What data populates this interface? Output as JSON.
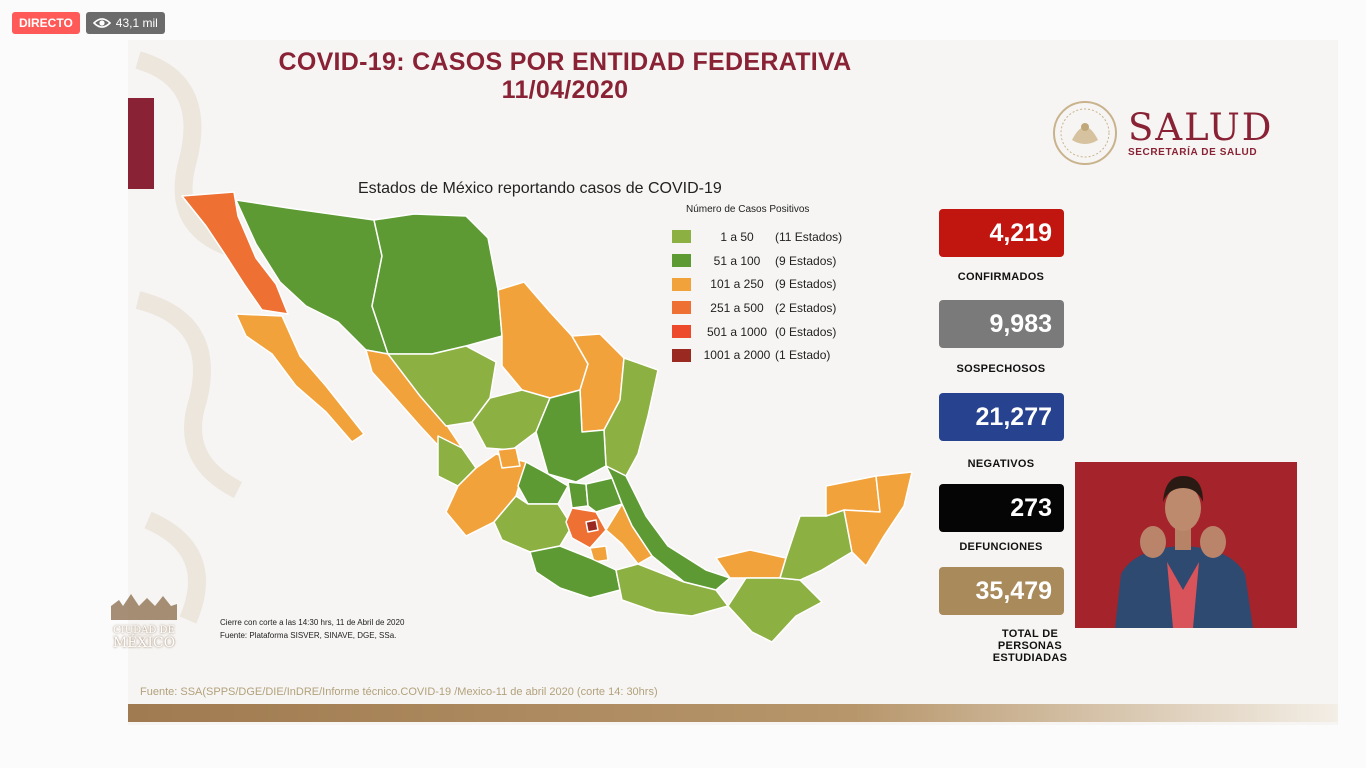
{
  "badges": {
    "live": "DIRECTO",
    "views": "43,1 mil",
    "views_icon": "eye-icon"
  },
  "slide": {
    "title_line1": "COVID-19: CASOS POR ENTIDAD FEDERATIVA",
    "title_line2": "11/04/2020",
    "brand_color": "#8a2235"
  },
  "logo": {
    "word": "SALUD",
    "sub": "SECRETARÍA DE SALUD",
    "seal_text": "ESTADOS UNIDOS MEXICANOS"
  },
  "map": {
    "title": "Estados de México reportando casos de COVID-19",
    "legend_title": "Número de Casos Positivos",
    "legend": [
      {
        "range": "1 a 50",
        "count": "(11 Estados)",
        "color": "#8db043"
      },
      {
        "range": "51 a 100",
        "count": "(9 Estados)",
        "color": "#5e9a33"
      },
      {
        "range": "101 a 250",
        "count": "(9 Estados)",
        "color": "#f2a23a"
      },
      {
        "range": "251 a 500",
        "count": "(2 Estados)",
        "color": "#ee7033"
      },
      {
        "range": "501 a 1000",
        "count": "(0 Estados)",
        "color": "#ec4a2a"
      },
      {
        "range": "1001 a 2000",
        "count": "(1 Estado)",
        "color": "#9a2a21"
      }
    ],
    "note1": "Cierre con corte a las 14:30 hrs, 11 de Abril de 2020",
    "note2": "Fuente: Plataforma SISVER, SINAVE, DGE, SSa."
  },
  "ciudad": {
    "line1": "CIUDAD DE",
    "line2": "MÉXICO"
  },
  "source": "Fuente: SSA(SPPS/DGE/DIE/InDRE/Informe técnico.COVID-19 /Mexico-11 de abril 2020 (corte 14: 30hrs)",
  "stats": [
    {
      "value": "4,219",
      "label": "CONFIRMADOS",
      "color": "#c0160f"
    },
    {
      "value": "9,983",
      "label": "SOSPECHOSOS",
      "color": "#7a7a7a"
    },
    {
      "value": "21,277",
      "label": "NEGATIVOS",
      "color": "#27428f"
    },
    {
      "value": "273",
      "label": "DEFUNCIONES",
      "color": "#050505"
    },
    {
      "value": "35,479",
      "label_l1": "TOTAL DE",
      "label_l2": "PERSONAS",
      "label_l3": "ESTUDIADAS",
      "color": "#a98a5b"
    }
  ]
}
